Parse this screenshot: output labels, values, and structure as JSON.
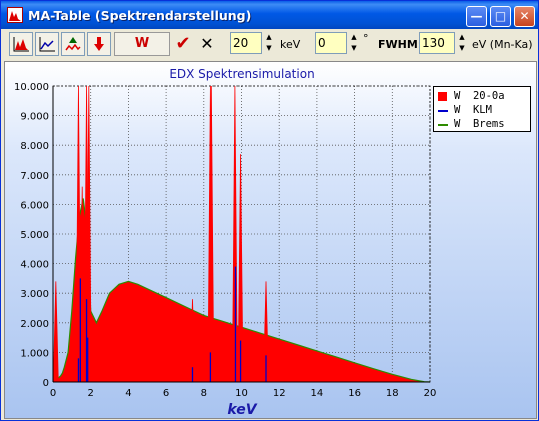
{
  "window": {
    "title": "MA-Table (Spektrendarstellung)"
  },
  "titlebar": {
    "minimize_glyph": "—",
    "maximize_glyph": "□",
    "close_glyph": "✕"
  },
  "toolbar": {
    "element_label": "W",
    "confirm_glyph": "✔",
    "cancel_glyph": "✕",
    "energy_value": "20",
    "energy_unit": "keV",
    "angle_value": "0",
    "angle_unit": "°",
    "fwhm_label": "FWHM:",
    "fwhm_value": "130",
    "fwhm_unit": "eV (Mn-Ka)",
    "icons": [
      "spectrum-chart-icon",
      "spectrum-view-icon",
      "peak-icon",
      "red-down-arrow-icon"
    ]
  },
  "chart_data": {
    "type": "area",
    "title": "EDX Spektrensimulation",
    "xlabel": "keV",
    "ylabel": "",
    "xlim": [
      0,
      20
    ],
    "ylim": [
      0,
      10000
    ],
    "x_ticks": [
      "0",
      "2",
      "4",
      "6",
      "8",
      "10",
      "12",
      "14",
      "16",
      "18",
      "20"
    ],
    "y_ticks": [
      "0",
      "1.000",
      "2.000",
      "3.000",
      "4.000",
      "5.000",
      "6.000",
      "7.000",
      "8.000",
      "9.000",
      "10.000"
    ],
    "grid": "dotted",
    "legend_position": "top-right, outside",
    "series": [
      {
        "name": "W  20-0a",
        "color": "#ff0000",
        "style": "filled",
        "x": [
          0,
          0.1,
          0.2,
          0.3,
          0.4,
          0.5,
          0.6,
          0.8,
          1.0,
          1.2,
          1.4,
          1.6,
          1.8,
          2.0,
          2.3,
          2.6,
          3.0,
          3.5,
          4.0,
          4.5,
          5.0,
          5.5,
          6.0,
          6.5,
          7.0,
          7.5,
          8.0,
          8.5,
          9.0,
          9.5,
          10.0,
          11.0,
          12.0,
          13.0,
          14.0,
          15.0,
          16.0,
          17.0,
          18.0,
          19.0,
          19.7,
          20.0
        ],
        "y": [
          0,
          50,
          100,
          150,
          200,
          300,
          500,
          1000,
          2400,
          4200,
          5600,
          6200,
          5200,
          2400,
          2000,
          2400,
          3000,
          3300,
          3400,
          3300,
          3150,
          3000,
          2850,
          2700,
          2550,
          2400,
          2250,
          2150,
          2050,
          1950,
          1850,
          1650,
          1450,
          1250,
          1050,
          850,
          650,
          450,
          260,
          90,
          10,
          0
        ]
      },
      {
        "name": "W  KLM",
        "color": "#0000cc",
        "style": "line"
      },
      {
        "name": "W  Brems",
        "color": "#2e8b00",
        "style": "line"
      }
    ],
    "peaks": [
      {
        "x": 0.15,
        "y": 3400
      },
      {
        "x": 1.35,
        "y": 10000
      },
      {
        "x": 1.55,
        "y": 6600
      },
      {
        "x": 1.78,
        "y": 10000
      },
      {
        "x": 1.9,
        "y": 10000
      },
      {
        "x": 7.4,
        "y": 2800
      },
      {
        "x": 8.35,
        "y": 10000
      },
      {
        "x": 8.4,
        "y": 10000
      },
      {
        "x": 9.65,
        "y": 10000
      },
      {
        "x": 9.95,
        "y": 7700
      },
      {
        "x": 11.3,
        "y": 3400
      }
    ],
    "klm_lines": [
      {
        "x": 1.35,
        "y": 800
      },
      {
        "x": 1.45,
        "y": 3500
      },
      {
        "x": 1.78,
        "y": 2800
      },
      {
        "x": 1.84,
        "y": 1500
      },
      {
        "x": 7.4,
        "y": 500
      },
      {
        "x": 8.35,
        "y": 1000
      },
      {
        "x": 9.68,
        "y": 3900
      },
      {
        "x": 9.95,
        "y": 1400
      },
      {
        "x": 11.3,
        "y": 900
      }
    ]
  }
}
